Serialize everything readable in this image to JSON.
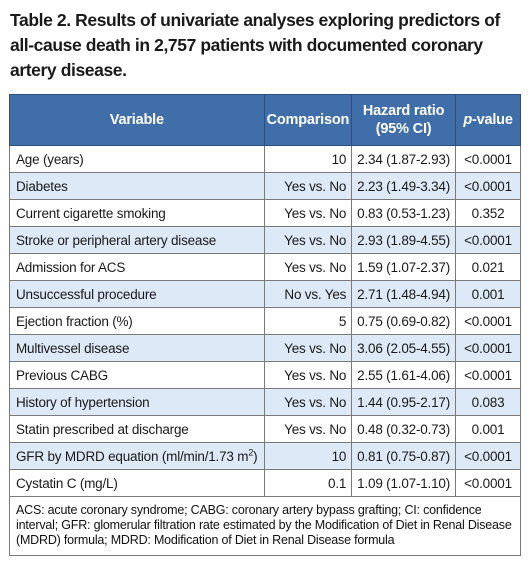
{
  "caption": "Table 2. Results of univariate analyses exploring predictors of all-cause death in 2,757 patients with documented coronary artery disease.",
  "headers": {
    "variable": "Variable",
    "comparison": "Comparison",
    "hr_line1": "Hazard ratio",
    "hr_line2": "(95% CI)",
    "p_italic": "p",
    "p_suffix": "-value"
  },
  "rows": [
    {
      "variable": "Age (years)",
      "comparison": "10",
      "hr": "2.34 (1.87-2.93)",
      "p": "<0.0001"
    },
    {
      "variable": "Diabetes",
      "comparison": "Yes vs. No",
      "hr": "2.23 (1.49-3.34)",
      "p": "<0.0001"
    },
    {
      "variable": "Current cigarette smoking",
      "comparison": "Yes vs. No",
      "hr": "0.83 (0.53-1.23)",
      "p": "0.352"
    },
    {
      "variable": "Stroke or peripheral artery disease",
      "comparison": "Yes vs. No",
      "hr": "2.93 (1.89-4.55)",
      "p": "<0.0001"
    },
    {
      "variable": "Admission for ACS",
      "comparison": "Yes vs. No",
      "hr": "1.59 (1.07-2.37)",
      "p": "0.021"
    },
    {
      "variable": "Unsuccessful procedure",
      "comparison": "No vs. Yes",
      "hr": "2.71 (1.48-4.94)",
      "p": "0.001"
    },
    {
      "variable": "Ejection fraction (%)",
      "comparison": "5",
      "hr": "0.75 (0.69-0.82)",
      "p": "<0.0001"
    },
    {
      "variable": "Multivessel disease",
      "comparison": "Yes vs. No",
      "hr": "3.06 (2.05-4.55)",
      "p": "<0.0001"
    },
    {
      "variable": "Previous CABG",
      "comparison": "Yes vs. No",
      "hr": "2.55 (1.61-4.06)",
      "p": "<0.0001"
    },
    {
      "variable": "History of hypertension",
      "comparison": "Yes vs. No",
      "hr": "1.44 (0.95-2.17)",
      "p": "0.083"
    },
    {
      "variable": "Statin prescribed at discharge",
      "comparison": "Yes vs. No",
      "hr": "0.48 (0.32-0.73)",
      "p": "0.001"
    },
    {
      "variable": "GFR by MDRD equation (ml/min/1.73 m",
      "variable_sup": "2",
      "variable_tail": ")",
      "comparison": "10",
      "hr": "0.81 (0.75-0.87)",
      "p": "<0.0001"
    },
    {
      "variable": "Cystatin C (mg/L)",
      "comparison": "0.1",
      "hr": "1.09 (1.07-1.10)",
      "p": "<0.0001"
    }
  ],
  "footnote": "ACS: acute coronary syndrome; CABG: coronary artery bypass grafting; CI: confidence interval; GFR: glomerular filtration rate estimated by the Modification of Diet in Renal Disease (MDRD) formula; MDRD: Modification of Diet in Renal Disease formula",
  "colors": {
    "header_bg": "#3f6ea8",
    "row_alt_bg": "#dde9f6"
  }
}
